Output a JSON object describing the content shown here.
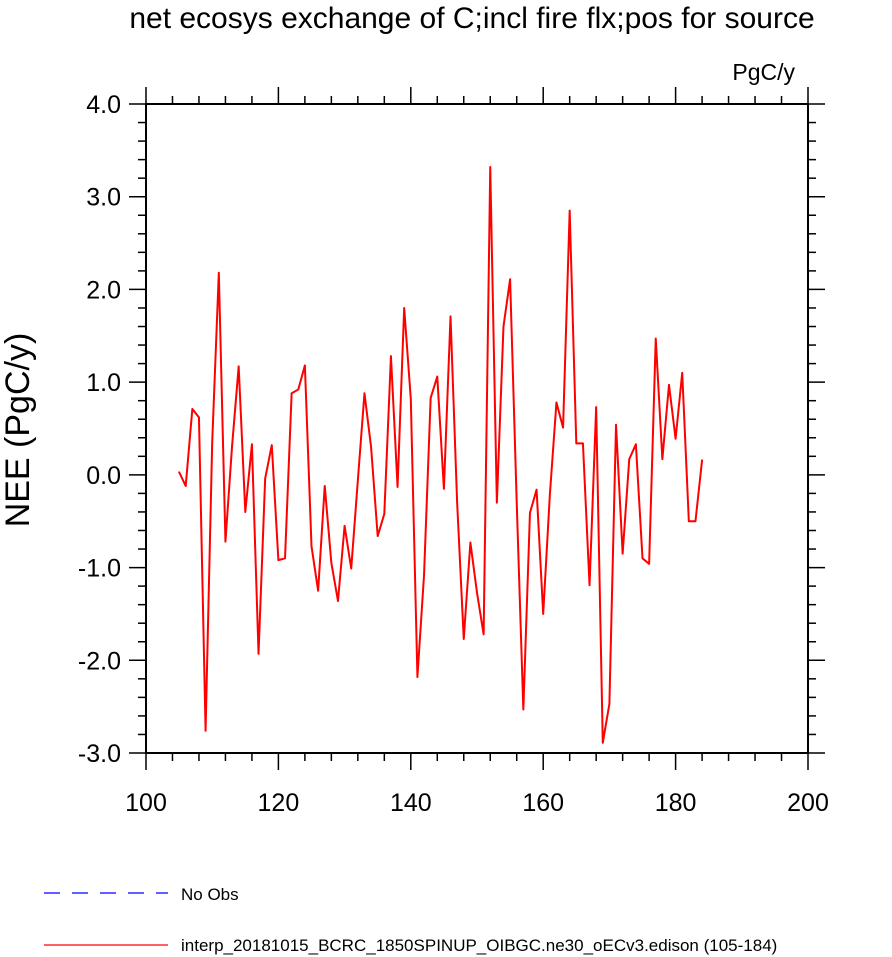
{
  "chart_data": {
    "type": "line",
    "title": "net ecosys exchange of C;incl fire flx;pos for source",
    "units": "PgC/y",
    "xlabel": "",
    "ylabel": "NEE  (PgC/y)",
    "xlim": [
      100,
      200
    ],
    "ylim": [
      -3.0,
      4.0
    ],
    "x_ticks": [
      100,
      120,
      140,
      160,
      180,
      200
    ],
    "x_tick_labels": [
      "100",
      "120",
      "140",
      "160",
      "180",
      "200"
    ],
    "y_ticks": [
      -3,
      -2,
      -1,
      0,
      1,
      2,
      3,
      4
    ],
    "y_tick_labels": [
      "-3.0",
      "-2.0",
      "-1.0",
      "0.0",
      "1.0",
      "2.0",
      "3.0",
      "4.0"
    ],
    "grid": false,
    "legend_position": "bottom-left",
    "series": [
      {
        "name": "interp_20181015_BCRC_1850SPINUP_OIBGC.ne30_oECv3.edison (105-184)",
        "color": "#ff0000",
        "style": "solid",
        "x": [
          105,
          106,
          107,
          108,
          109,
          110,
          111,
          112,
          113,
          114,
          115,
          116,
          117,
          118,
          119,
          120,
          121,
          122,
          123,
          124,
          125,
          126,
          127,
          128,
          129,
          130,
          131,
          132,
          133,
          134,
          135,
          136,
          137,
          138,
          139,
          140,
          141,
          142,
          143,
          144,
          145,
          146,
          147,
          148,
          149,
          150,
          151,
          152,
          153,
          154,
          155,
          156,
          157,
          158,
          159,
          160,
          161,
          162,
          163,
          164,
          165,
          166,
          167,
          168,
          169,
          170,
          171,
          172,
          173,
          174,
          175,
          176,
          177,
          178,
          179,
          180,
          181,
          182,
          183,
          184
        ],
        "values": [
          0.03,
          -0.12,
          0.71,
          0.62,
          -2.76,
          0.35,
          2.18,
          -0.72,
          0.31,
          1.17,
          -0.4,
          0.33,
          -1.93,
          -0.04,
          0.32,
          -0.92,
          -0.9,
          0.88,
          0.92,
          1.18,
          -0.77,
          -1.25,
          -0.12,
          -0.95,
          -1.36,
          -0.55,
          -1.01,
          -0.06,
          0.88,
          0.3,
          -0.66,
          -0.42,
          1.28,
          -0.13,
          1.8,
          0.82,
          -2.18,
          -1.08,
          0.83,
          1.06,
          -0.15,
          1.71,
          -0.3,
          -1.77,
          -0.73,
          -1.27,
          -1.72,
          3.32,
          -0.3,
          1.6,
          2.11,
          -0.3,
          -2.53,
          -0.41,
          -0.16,
          -1.5,
          -0.22,
          0.78,
          0.51,
          2.85,
          0.34,
          0.34,
          -1.19,
          0.73,
          -2.89,
          -2.47,
          0.54,
          -0.85,
          0.17,
          0.33,
          -0.9,
          -0.96,
          1.47,
          0.17,
          0.97,
          0.39,
          1.1,
          -0.5,
          -0.5,
          0.16
        ]
      },
      {
        "name": "No Obs",
        "color": "#0000ff",
        "style": "dashed",
        "x": [],
        "values": []
      }
    ]
  }
}
